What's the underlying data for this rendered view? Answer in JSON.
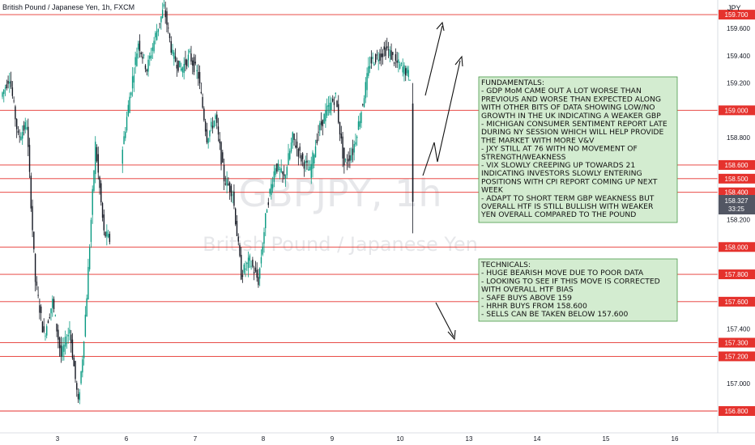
{
  "header": {
    "title": "British Pound / Japanese Yen, 1h, FXCM",
    "currency": "JPY"
  },
  "watermark": {
    "symbol": "GBPJPY, 1h",
    "name": "British Pound / Japanese Yen"
  },
  "colors": {
    "up": "#089981",
    "down": "#131722",
    "level_line": "#e5322d",
    "note_fill": "#d3ecd0",
    "note_border": "#4a9a4a",
    "current_price": "#525663"
  },
  "current_price": {
    "value": "158.327",
    "countdown": "33:25"
  },
  "chart_data": {
    "type": "candlestick",
    "title": "British Pound / Japanese Yen, 1h, FXCM",
    "ylim": [
      156.7,
      159.8
    ],
    "y_ticks": [
      "159.600",
      "159.400",
      "159.200",
      "159.000",
      "158.800",
      "158.600",
      "158.400",
      "158.200",
      "158.000",
      "157.800",
      "157.600",
      "157.400",
      "157.200",
      "157.000",
      "156.800"
    ],
    "x_ticks": [
      "3",
      "6",
      "7",
      "8",
      "9",
      "10",
      "13",
      "14",
      "15",
      "16"
    ],
    "levels": [
      "159.700",
      "159.000",
      "158.600",
      "158.500",
      "158.400",
      "158.000",
      "157.800",
      "157.600",
      "157.300",
      "157.200",
      "156.800"
    ],
    "path_segments": [
      [
        [
          0,
          159.1
        ],
        [
          6,
          159.25
        ],
        [
          12,
          158.8
        ],
        [
          18,
          158.9
        ],
        [
          24,
          157.75
        ],
        [
          30,
          157.35
        ],
        [
          36,
          157.6
        ],
        [
          42,
          157.2
        ],
        [
          48,
          157.4
        ],
        [
          54,
          156.85
        ],
        [
          57,
          157.2
        ],
        [
          60,
          157.65
        ],
        [
          66,
          158.75
        ],
        [
          72,
          158.1
        ],
        [
          76,
          158.05
        ]
      ],
      [
        [
          84,
          158.65
        ],
        [
          90,
          159.1
        ],
        [
          96,
          159.5
        ],
        [
          102,
          159.3
        ],
        [
          108,
          159.55
        ],
        [
          114,
          159.75
        ],
        [
          120,
          159.4
        ],
        [
          126,
          159.3
        ],
        [
          132,
          159.4
        ],
        [
          138,
          159.25
        ],
        [
          144,
          158.8
        ],
        [
          150,
          158.95
        ],
        [
          156,
          158.5
        ],
        [
          162,
          158.4
        ],
        [
          168,
          157.8
        ],
        [
          174,
          157.9
        ],
        [
          180,
          157.75
        ],
        [
          186,
          158.3
        ],
        [
          192,
          158.6
        ],
        [
          198,
          158.5
        ],
        [
          204,
          158.8
        ],
        [
          210,
          158.65
        ],
        [
          216,
          158.55
        ],
        [
          222,
          158.85
        ],
        [
          228,
          159.0
        ],
        [
          234,
          159.1
        ],
        [
          240,
          158.6
        ],
        [
          246,
          158.7
        ],
        [
          252,
          159.0
        ],
        [
          258,
          159.35
        ],
        [
          264,
          159.4
        ],
        [
          270,
          159.45
        ],
        [
          276,
          159.35
        ],
        [
          282,
          159.3
        ],
        [
          286,
          159.25
        ]
      ]
    ],
    "annotations": [
      {
        "title": "FUNDAMENTALS:",
        "lines": [
          "- GDP MoM CAME OUT A LOT WORSE THAN",
          "PREVIOUS AND WORSE THAN EXPECTED ALONG",
          "WITH OTHER BITS OF DATA SHOWING LOW/NO",
          "GROWTH IN THE UK INDICATING A WEAKER GBP",
          "- MICHIGAN CONSUMER SENTIMENT REPORT LATE",
          "DURING NY SESSION WHICH WILL HELP PROVIDE",
          "THE MARKET WITH MORE V&V",
          "- JXY STILL AT 76 WITH NO MOVEMENT OF",
          "STRENGTH/WEAKNESS",
          "- VIX SLOWLY CREEPING UP TOWARDS 21",
          "INDICATING INVESTORS SLOWLY ENTERING",
          "POSITIONS WITH CPI REPORT COMING UP NEXT",
          "WEEK",
          "- ADAPT TO SHORT TERM GBP WEAKNESS BUT",
          "OVERALL HTF IS STILL BULLISH WITH WEAKER",
          "YEN OVERALL COMPARED TO THE POUND"
        ]
      },
      {
        "title": "TECHNICALS:",
        "lines": [
          "- HUGE BEARISH MOVE DUE TO POOR DATA",
          "- LOOKING TO SEE IF THIS MOVE IS CORRECTED",
          "WITH OVERALL HTF BIAS",
          "- SAFE BUYS ABOVE 159",
          "- HRHR BUYS FROM 158.600",
          "- SELLS CAN BE TAKEN BELOW 157.600"
        ]
      }
    ]
  }
}
